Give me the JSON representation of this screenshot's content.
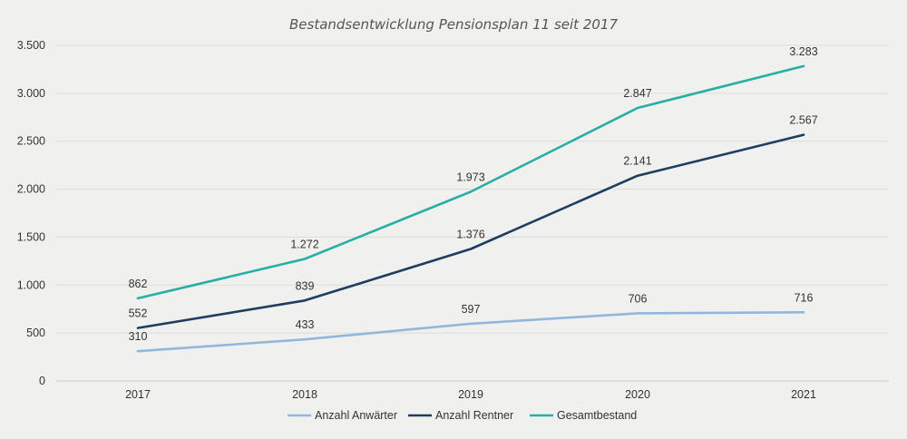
{
  "chart_data": {
    "type": "line",
    "title": "Bestandsentwicklung Pensionsplan 11 seit 2017",
    "categories": [
      "2017",
      "2018",
      "2019",
      "2020",
      "2021"
    ],
    "series": [
      {
        "name": "Anzahl Anwärter",
        "values": [
          310,
          433,
          597,
          706,
          716
        ],
        "labels": [
          "310",
          "433",
          "597",
          "706",
          "716"
        ],
        "color": "#93b7dc"
      },
      {
        "name": "Anzahl Rentner",
        "values": [
          552,
          839,
          1376,
          2141,
          2567
        ],
        "labels": [
          "552",
          "839",
          "1.376",
          "2.141",
          "2.567"
        ],
        "color": "#1e3d5f"
      },
      {
        "name": "Gesamtbestand",
        "values": [
          862,
          1272,
          1973,
          2847,
          3283
        ],
        "labels": [
          "862",
          "1.272",
          "1.973",
          "2.847",
          "3.283"
        ],
        "color": "#27aea5"
      }
    ],
    "yticks": [
      0,
      500,
      1000,
      1500,
      2000,
      2500,
      3000,
      3500
    ],
    "ytick_labels": [
      "0",
      "500",
      "1.000",
      "1.500",
      "2.000",
      "2.500",
      "3.000",
      "3.500"
    ],
    "ylim": [
      0,
      3500
    ],
    "grid": true,
    "legend": "bottom-center"
  }
}
